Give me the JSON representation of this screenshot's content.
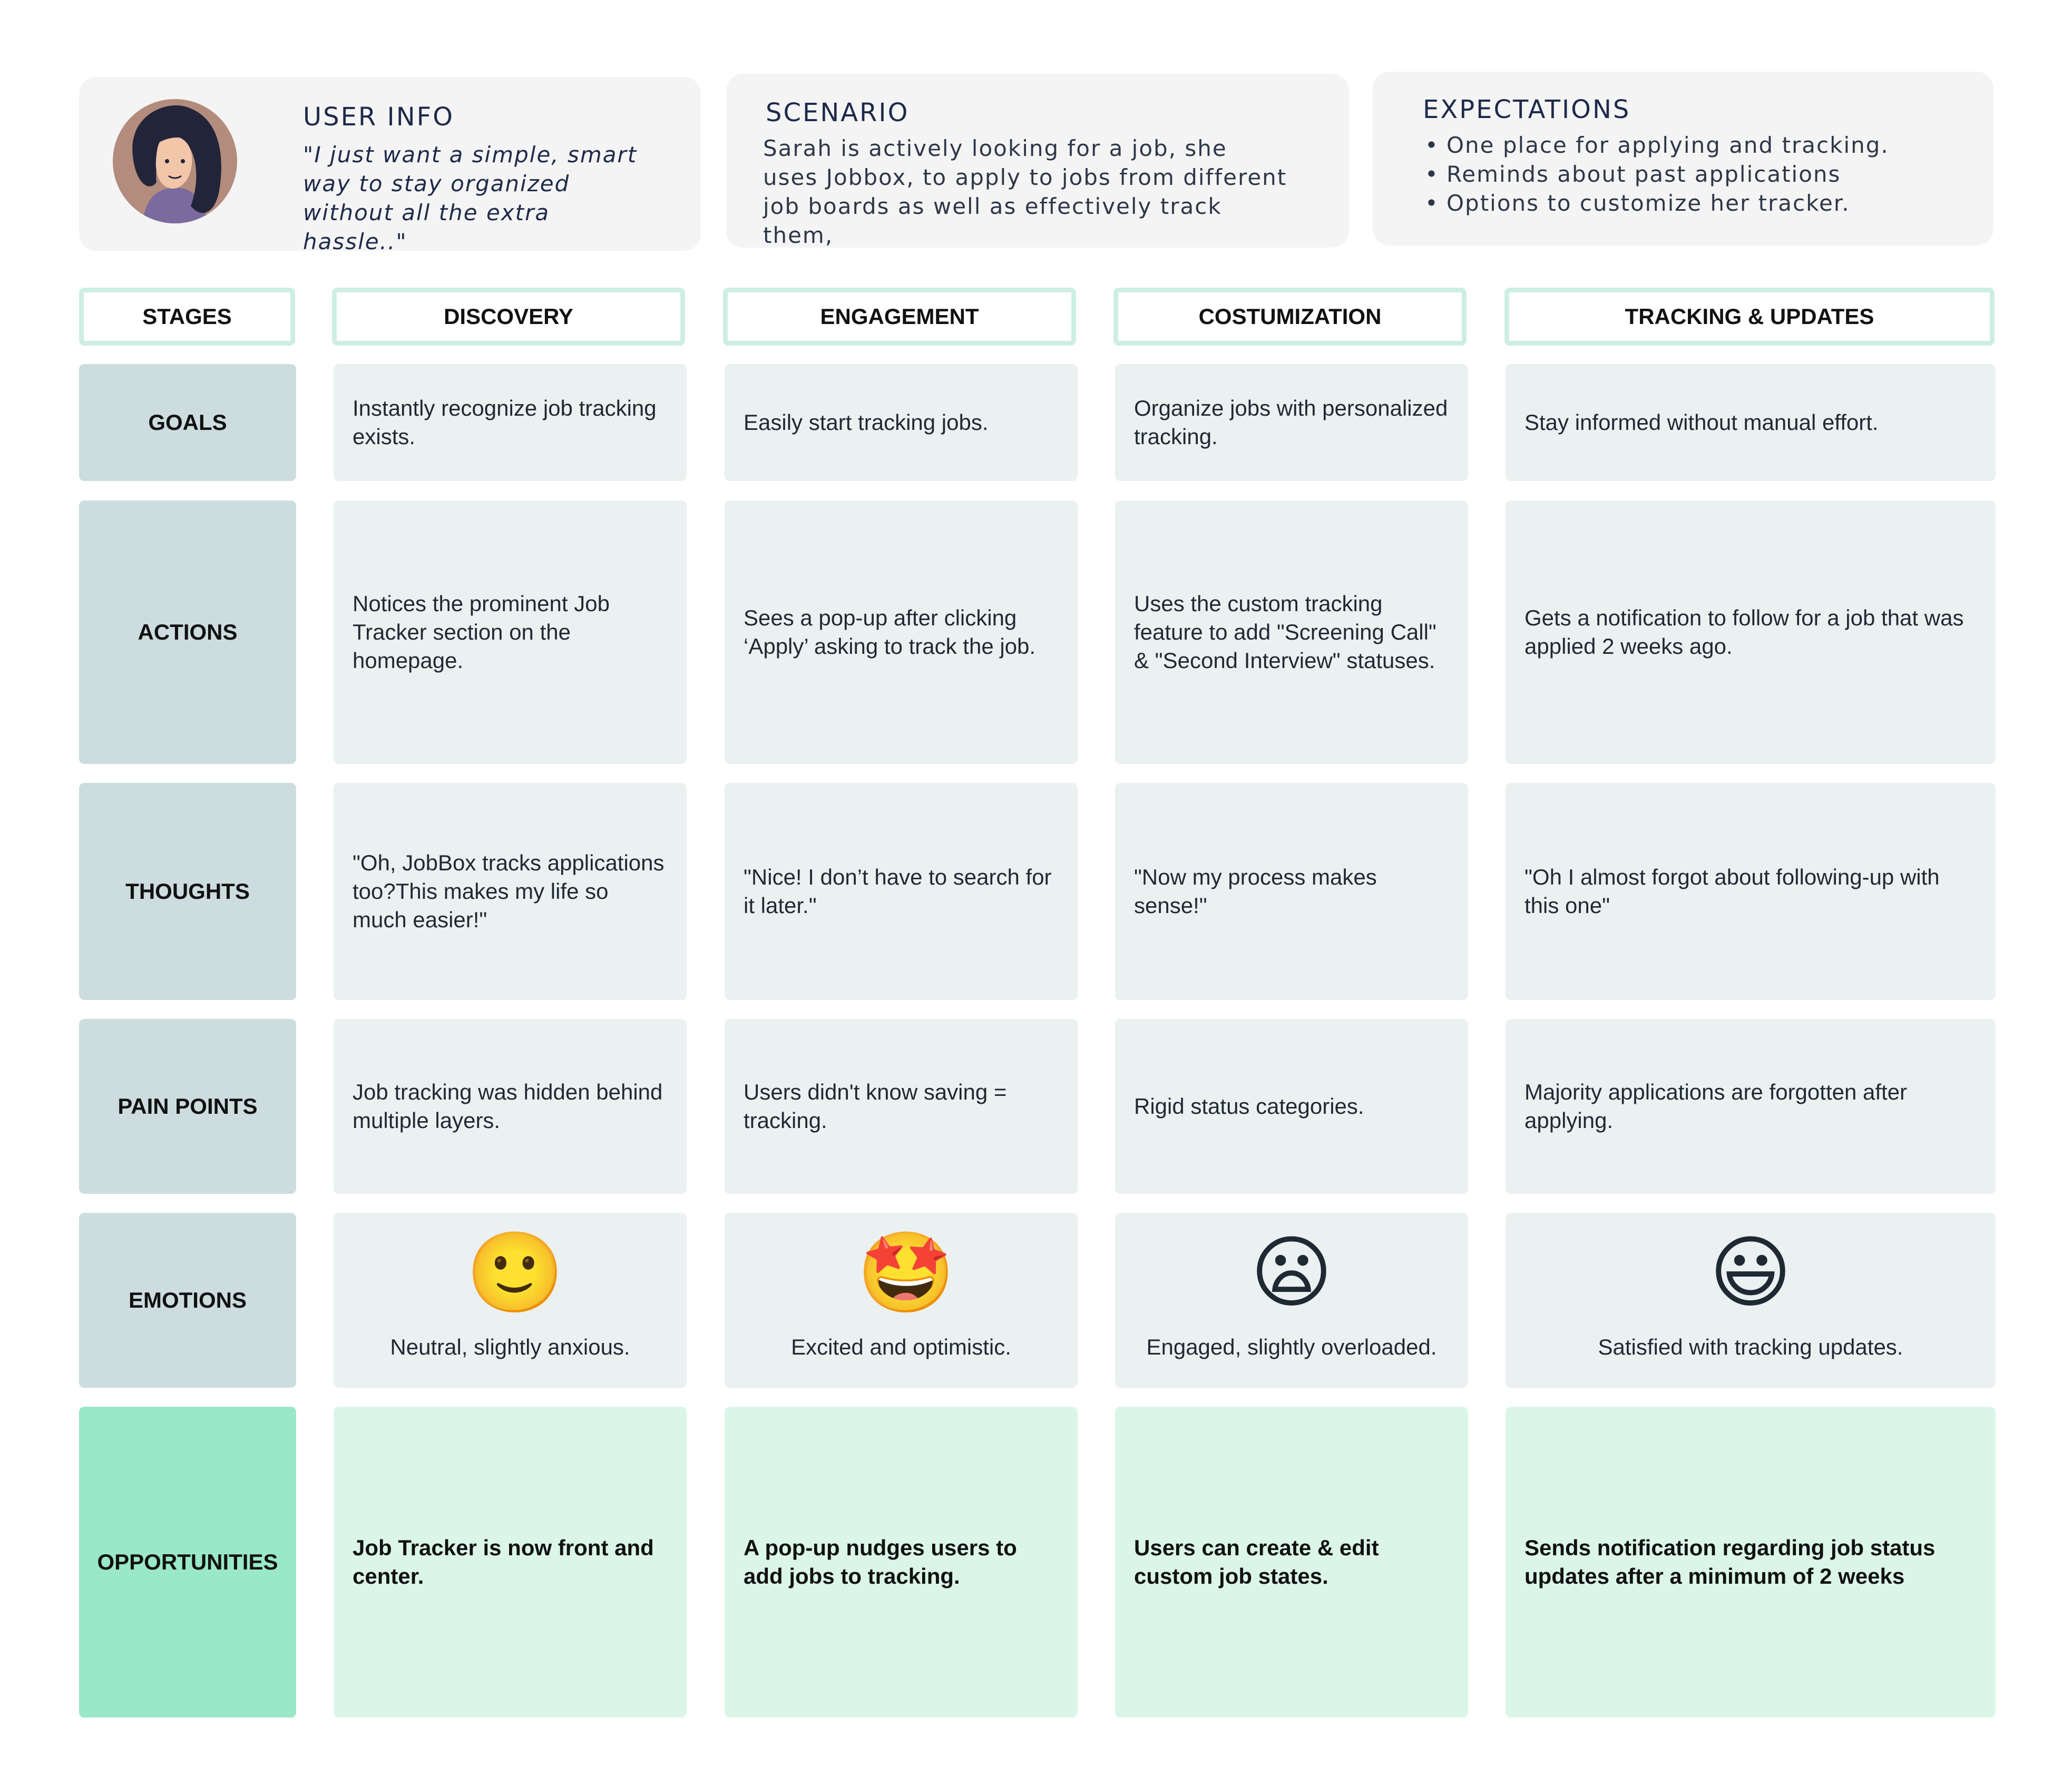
{
  "user_info": {
    "heading": "USER INFO",
    "quote": "\"I just want a simple, smart way to stay organized without all the extra hassle..\""
  },
  "scenario": {
    "heading": "SCENARIO",
    "text": "Sarah is actively looking for a job, she uses Jobbox, to apply to jobs from different job boards as well as effectively track them,"
  },
  "expectations": {
    "heading": "EXPECTATIONS",
    "items": [
      "One place for applying and tracking.",
      "Reminds about past applications",
      "Options to customize her tracker."
    ]
  },
  "stages_label": "STAGES",
  "stages": [
    "DISCOVERY",
    "ENGAGEMENT",
    "COSTUMIZATION",
    "TRACKING & UPDATES"
  ],
  "rows": [
    {
      "label": "GOALS",
      "cells": [
        "Instantly recognize job tracking exists.",
        "Easily start tracking jobs.",
        "Organize jobs with personalized tracking.",
        "Stay informed without manual effort."
      ]
    },
    {
      "label": "ACTIONS",
      "cells": [
        "Notices the prominent Job Tracker section on the homepage.",
        "Sees a pop-up after clicking ‘Apply’ asking to track the job.",
        "Uses the custom tracking feature to add \"Screening Call\" & \"Second Interview\" statuses.",
        "Gets a notification to follow for a job that was applied 2 weeks ago."
      ]
    },
    {
      "label": "THOUGHTS",
      "cells": [
        "\"Oh, JobBox tracks applications too?This makes my life so much easier!\"",
        "\"Nice! I don’t have to search for it later.\"",
        "\"Now my process makes sense!\"",
        "\"Oh I almost forgot about following-up with this one\""
      ]
    },
    {
      "label": "PAIN POINTS",
      "cells": [
        "Job tracking was hidden behind multiple layers.",
        "Users didn't know saving = tracking.",
        "Rigid status categories.",
        "Majority applications are forgotten after applying."
      ]
    },
    {
      "label": "EMOTIONS",
      "emotions": [
        {
          "icon": "slightly-smiling-face-icon",
          "glyph": "🙂",
          "text": "Neutral, slightly anxious."
        },
        {
          "icon": "star-struck-face-icon",
          "glyph": "🤩",
          "text": "Excited and optimistic."
        },
        {
          "icon": "frowning-face-icon",
          "glyph": "😦",
          "text": "Engaged, slightly overloaded."
        },
        {
          "icon": "grinning-face-icon",
          "glyph": "😃",
          "text": "Satisfied with tracking updates."
        }
      ]
    },
    {
      "label": "OPPORTUNITIES",
      "cells": [
        "Job Tracker is now front and center.",
        "A pop-up nudges users to add jobs to tracking.",
        "Users can create & edit custom job states.",
        "Sends notification regarding job status updates after a minimum of 2 weeks"
      ]
    }
  ],
  "colors": {
    "stage_border": "#cdeee4",
    "label_bg": "#cddcdf",
    "content_bg": "#ebf0f1",
    "opportunity_label_bg": "#9ae8c7",
    "opportunity_bg": "#dbf6e9"
  }
}
